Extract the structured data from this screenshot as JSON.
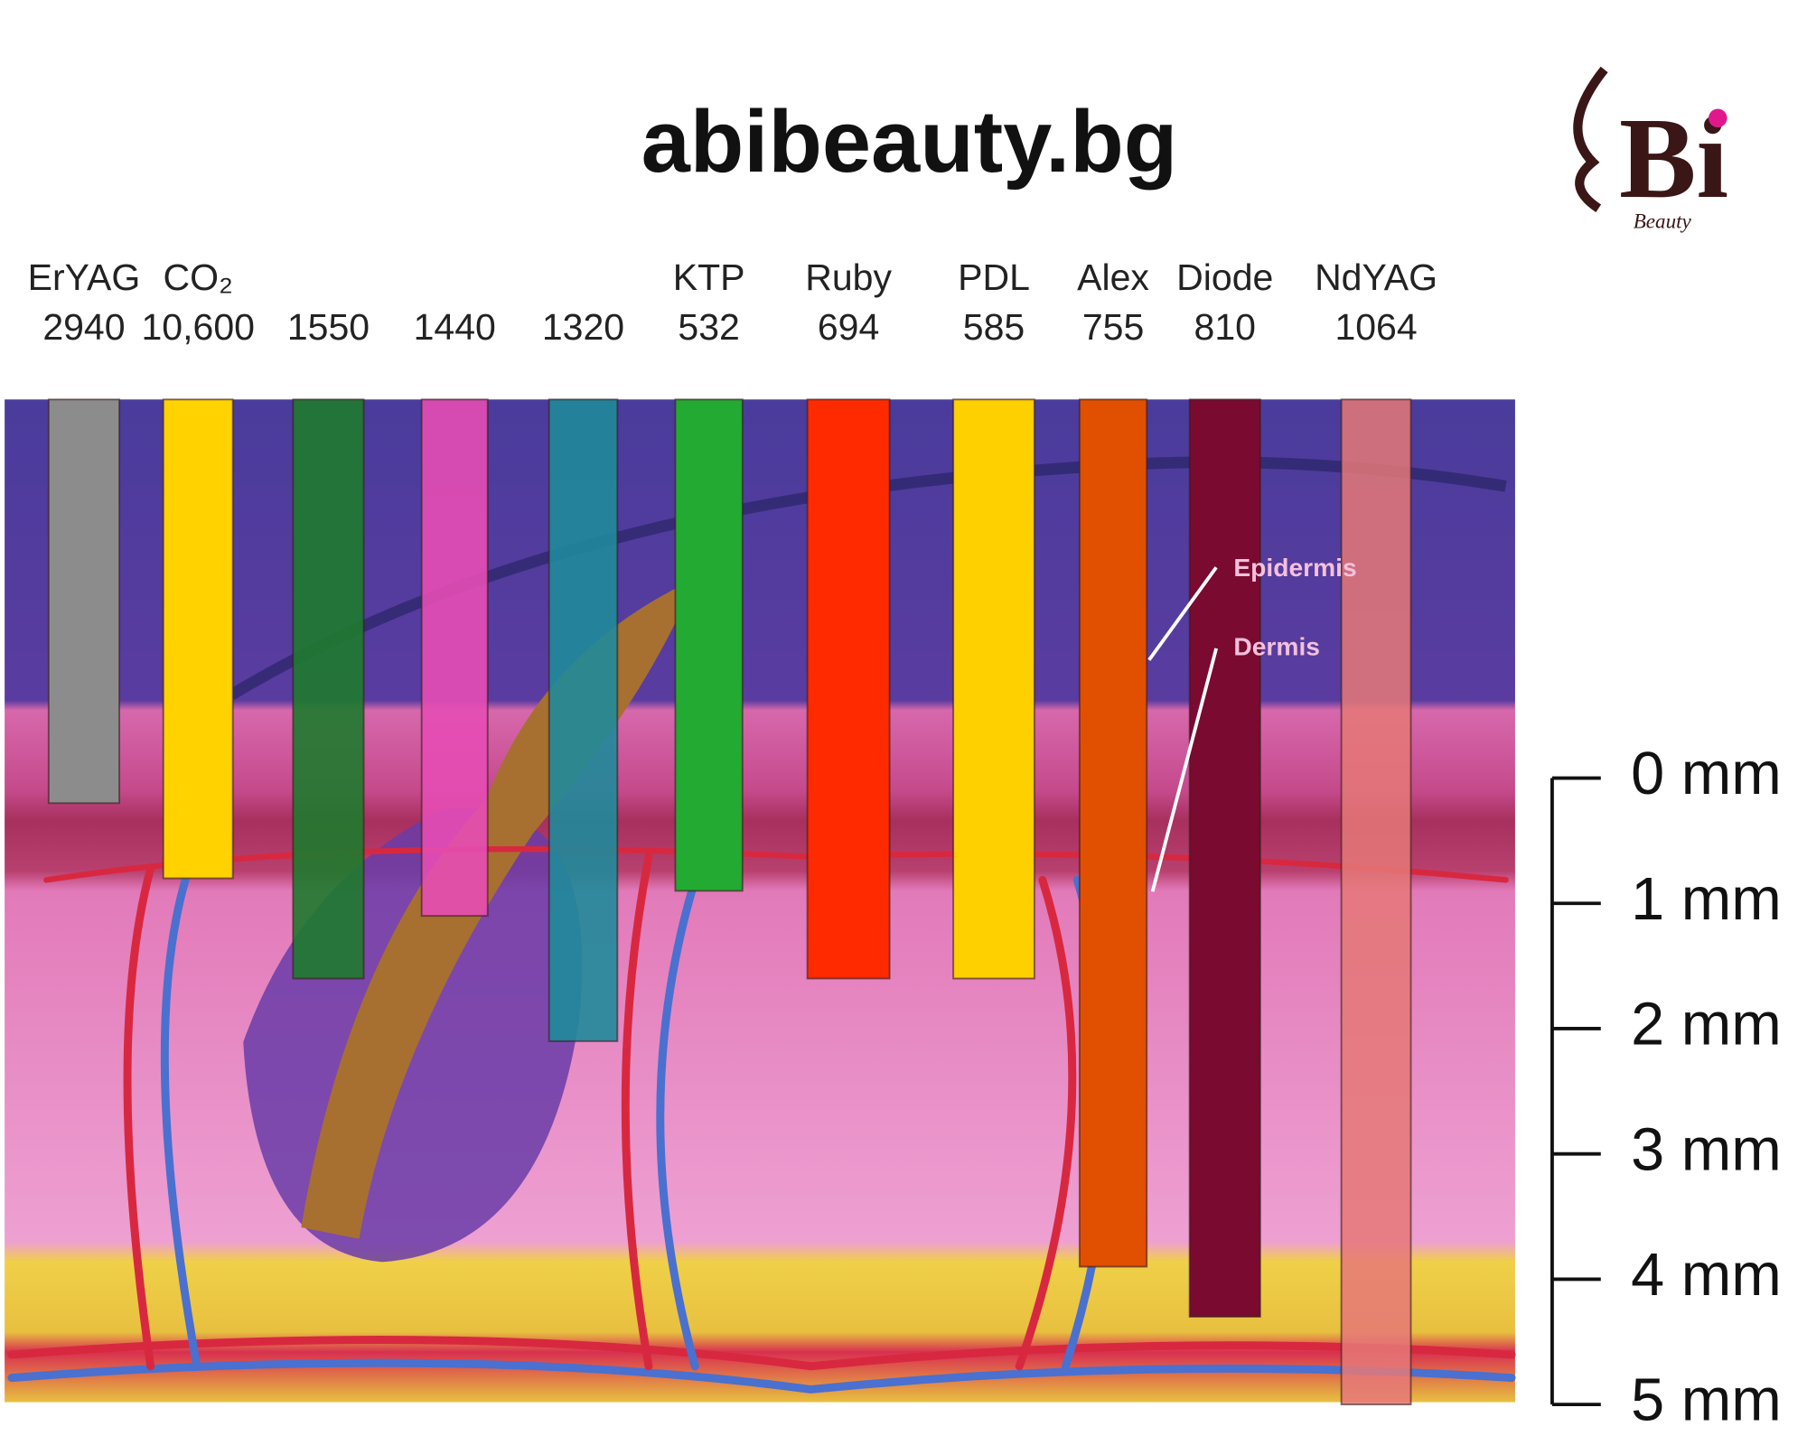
{
  "header": {
    "site": "abibeauty.bg",
    "logo_mark": "Bi",
    "logo_tagline": "Beauty"
  },
  "chart_data": {
    "type": "bar",
    "categories": [
      "ErYAG",
      "CO₂",
      null,
      null,
      null,
      "KTP",
      "Ruby",
      "PDL",
      "Alex",
      "Diode",
      "NdYAG"
    ],
    "wavelengths": [
      "2940",
      "10,600",
      "1550",
      "1440",
      "1320",
      "532",
      "694",
      "585",
      "755",
      "810",
      "1064"
    ],
    "values": [
      0.2,
      0.8,
      1.6,
      1.1,
      2.1,
      0.9,
      1.6,
      1.6,
      3.9,
      4.3,
      5.0
    ],
    "colors": [
      "#8c8c8c",
      "#ffd200",
      "#1e7a2ee6",
      "#e64db4e6",
      "#1f8a9ae6",
      "#22aa33",
      "#ff2a00",
      "#ffd000",
      "#e05000",
      "#7a0a30",
      "#e57878d9"
    ],
    "ylim": [
      0,
      5
    ],
    "yticks": [
      {
        "value": 0,
        "label": "0 mm"
      },
      {
        "value": 1,
        "label": "1 mm"
      },
      {
        "value": 2,
        "label": "2 mm"
      },
      {
        "value": 3,
        "label": "3 mm"
      },
      {
        "value": 4,
        "label": "4 mm"
      },
      {
        "value": 5,
        "label": "5 mm"
      }
    ],
    "annotations": [
      "Epidermis",
      "Dermis"
    ]
  }
}
